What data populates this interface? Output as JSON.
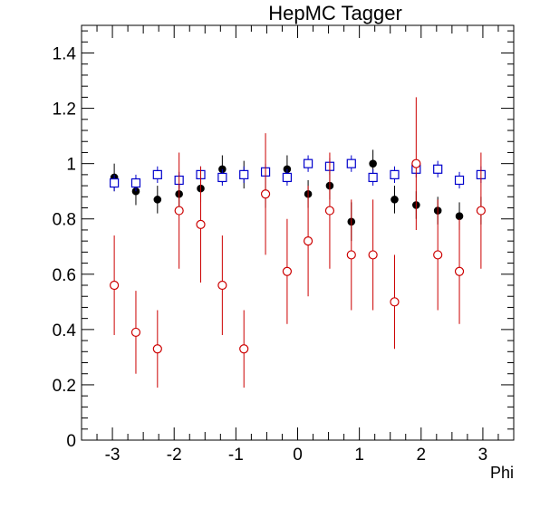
{
  "chart_data": {
    "type": "scatter",
    "title": "HepMC Tagger",
    "xlabel": "Phi",
    "ylabel": "",
    "xlim": [
      -3.5,
      3.5
    ],
    "ylim": [
      0,
      1.5
    ],
    "x_ticks": [
      "-3",
      "-2",
      "-1",
      "0",
      "1",
      "2",
      "3"
    ],
    "y_ticks": [
      "0",
      "0.2",
      "0.4",
      "0.6",
      "0.8",
      "1",
      "1.2",
      "1.4"
    ],
    "grid": false,
    "legend": "none",
    "series": [
      {
        "marker": "filled-circle",
        "color": "#000000",
        "x": [
          -2.97,
          -2.62,
          -2.27,
          -1.92,
          -1.57,
          -1.22,
          -0.87,
          -0.52,
          -0.17,
          0.17,
          0.52,
          0.87,
          1.22,
          1.57,
          1.92,
          2.27,
          2.62,
          2.97
        ],
        "y": [
          0.95,
          0.9,
          0.87,
          0.89,
          0.91,
          0.98,
          0.96,
          0.89,
          0.98,
          0.89,
          0.92,
          0.79,
          1.0,
          0.87,
          0.85,
          0.83,
          0.81,
          0.83
        ],
        "err": [
          0.05,
          0.05,
          0.05,
          0.05,
          0.05,
          0.05,
          0.05,
          0.05,
          0.05,
          0.05,
          0.05,
          0.07,
          0.05,
          0.05,
          0.05,
          0.05,
          0.05,
          0.05
        ]
      },
      {
        "marker": "open-square",
        "color": "#0000cc",
        "x": [
          -2.97,
          -2.62,
          -2.27,
          -1.92,
          -1.57,
          -1.22,
          -0.87,
          -0.52,
          -0.17,
          0.17,
          0.52,
          0.87,
          1.22,
          1.57,
          1.92,
          2.27,
          2.62,
          2.97
        ],
        "y": [
          0.93,
          0.93,
          0.96,
          0.94,
          0.96,
          0.95,
          0.96,
          0.97,
          0.95,
          1.0,
          0.99,
          1.0,
          0.95,
          0.96,
          0.98,
          0.98,
          0.94,
          0.96
        ],
        "err": [
          0.03,
          0.03,
          0.03,
          0.03,
          0.03,
          0.03,
          0.03,
          0.03,
          0.03,
          0.03,
          0.03,
          0.03,
          0.03,
          0.03,
          0.03,
          0.03,
          0.03,
          0.03
        ]
      },
      {
        "marker": "open-circle",
        "color": "#cc0000",
        "x": [
          -2.97,
          -2.62,
          -2.27,
          -1.92,
          -1.57,
          -1.22,
          -0.87,
          -0.52,
          -0.17,
          0.17,
          0.52,
          0.87,
          1.22,
          1.57,
          1.92,
          2.27,
          2.62,
          2.97
        ],
        "y": [
          0.56,
          0.39,
          0.33,
          0.83,
          0.78,
          0.56,
          0.33,
          0.89,
          0.61,
          0.72,
          0.83,
          0.67,
          0.67,
          0.5,
          1.0,
          0.67,
          0.61,
          0.83
        ],
        "err": [
          0.18,
          0.15,
          0.14,
          0.21,
          0.21,
          0.18,
          0.14,
          0.22,
          0.19,
          0.2,
          0.21,
          0.2,
          0.2,
          0.17,
          0.24,
          0.2,
          0.19,
          0.21
        ]
      }
    ]
  }
}
